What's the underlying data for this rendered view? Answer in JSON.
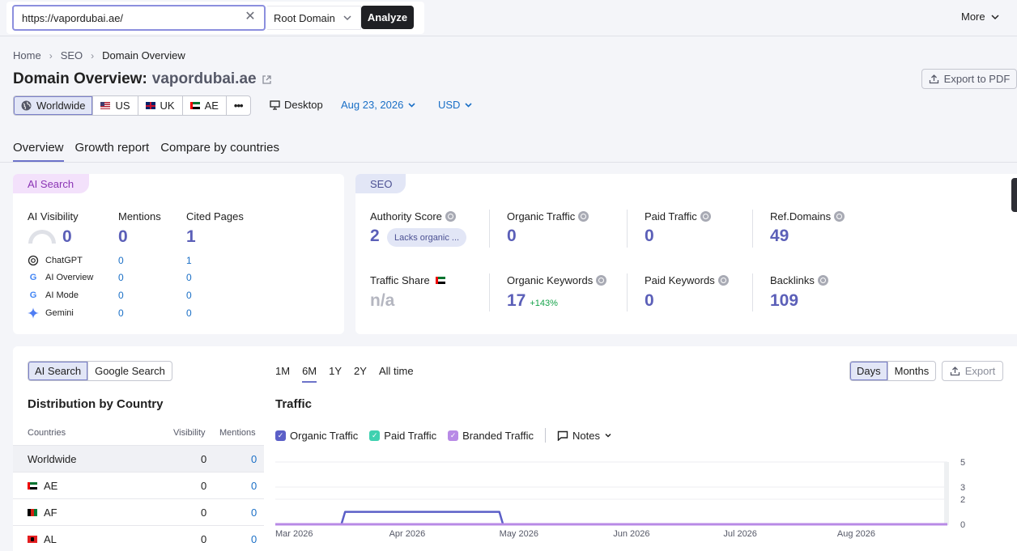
{
  "search": {
    "url": "https://vapordubai.ae/",
    "scope": "Root Domain",
    "analyze_label": "Analyze"
  },
  "top": {
    "more_label": "More"
  },
  "breadcrumb": [
    "Home",
    "SEO",
    "Domain Overview"
  ],
  "title": {
    "prefix": "Domain Overview:",
    "domain": "vapordubai.ae"
  },
  "export_pdf_label": "Export to PDF",
  "regions": [
    {
      "label": "Worldwide",
      "icon": "globe-icon",
      "active": true
    },
    {
      "label": "US",
      "icon": "flag-us"
    },
    {
      "label": "UK",
      "icon": "flag-uk"
    },
    {
      "label": "AE",
      "icon": "flag-ae"
    }
  ],
  "regions_more": "•••",
  "device_label": "Desktop",
  "date_label": "Aug 23, 2026",
  "currency_label": "USD",
  "main_tabs": [
    "Overview",
    "Growth report",
    "Compare by countries"
  ],
  "ai_card": {
    "tag": "AI Search",
    "visibility": {
      "label": "AI Visibility",
      "value": "0"
    },
    "mentions": {
      "label": "Mentions",
      "value": "0"
    },
    "cited": {
      "label": "Cited Pages",
      "value": "1"
    },
    "engines": [
      {
        "name": "ChatGPT",
        "mentions": "0",
        "cited": "1"
      },
      {
        "name": "AI Overview",
        "mentions": "0",
        "cited": "0"
      },
      {
        "name": "AI Mode",
        "mentions": "0",
        "cited": "0"
      },
      {
        "name": "Gemini",
        "mentions": "0",
        "cited": "0"
      }
    ]
  },
  "seo_card": {
    "tag": "SEO",
    "authority": {
      "label": "Authority Score",
      "value": "2",
      "badge": "Lacks organic ..."
    },
    "organic_traffic": {
      "label": "Organic Traffic",
      "value": "0"
    },
    "paid_traffic": {
      "label": "Paid Traffic",
      "value": "0"
    },
    "ref_domains": {
      "label": "Ref.Domains",
      "value": "49"
    },
    "traffic_share": {
      "label": "Traffic Share",
      "value": "n/a"
    },
    "organic_keywords": {
      "label": "Organic Keywords",
      "value": "17",
      "delta": "+143%"
    },
    "paid_keywords": {
      "label": "Paid Keywords",
      "value": "0"
    },
    "backlinks": {
      "label": "Backlinks",
      "value": "109"
    }
  },
  "bottom": {
    "toggle": [
      "AI Search",
      "Google Search"
    ],
    "dist_title": "Distribution by Country",
    "columns": {
      "country": "Countries",
      "visibility": "Visibility",
      "mentions": "Mentions"
    },
    "rows": [
      {
        "country": "Worldwide",
        "visibility": "0",
        "mentions": "0"
      },
      {
        "country": "AE",
        "visibility": "0",
        "mentions": "0"
      },
      {
        "country": "AF",
        "visibility": "0",
        "mentions": "0"
      },
      {
        "country": "AL",
        "visibility": "0",
        "mentions": "0"
      }
    ],
    "periods": [
      "1M",
      "6M",
      "1Y",
      "2Y",
      "All time"
    ],
    "active_period": "6M",
    "granularity": [
      "Days",
      "Months"
    ],
    "export_label": "Export",
    "traffic_title": "Traffic",
    "legend": [
      {
        "label": "Organic Traffic",
        "color": "#5b5fc7"
      },
      {
        "label": "Paid Traffic",
        "color": "#3fd1b0"
      },
      {
        "label": "Branded Traffic",
        "color": "#b88ae6"
      }
    ],
    "notes_label": "Notes"
  },
  "chart_data": {
    "type": "line",
    "x_ticks": [
      "Mar 2026",
      "Apr 2026",
      "May 2026",
      "Jun 2026",
      "Jul 2026",
      "Aug 2026"
    ],
    "y_ticks": [
      "5",
      "3",
      "2",
      "0"
    ],
    "ylim": [
      0,
      5
    ],
    "series": [
      {
        "name": "Organic Traffic",
        "color": "#5b5fc7",
        "x": [
          "2026-03-01",
          "2026-03-19",
          "2026-03-20",
          "2026-05-01",
          "2026-05-02",
          "2026-08-31"
        ],
        "values": [
          0,
          0,
          1,
          1,
          0,
          0
        ]
      },
      {
        "name": "Branded Traffic",
        "color": "#b88ae6",
        "x": [
          "2026-03-01",
          "2026-08-31"
        ],
        "values": [
          0,
          0
        ]
      }
    ]
  }
}
